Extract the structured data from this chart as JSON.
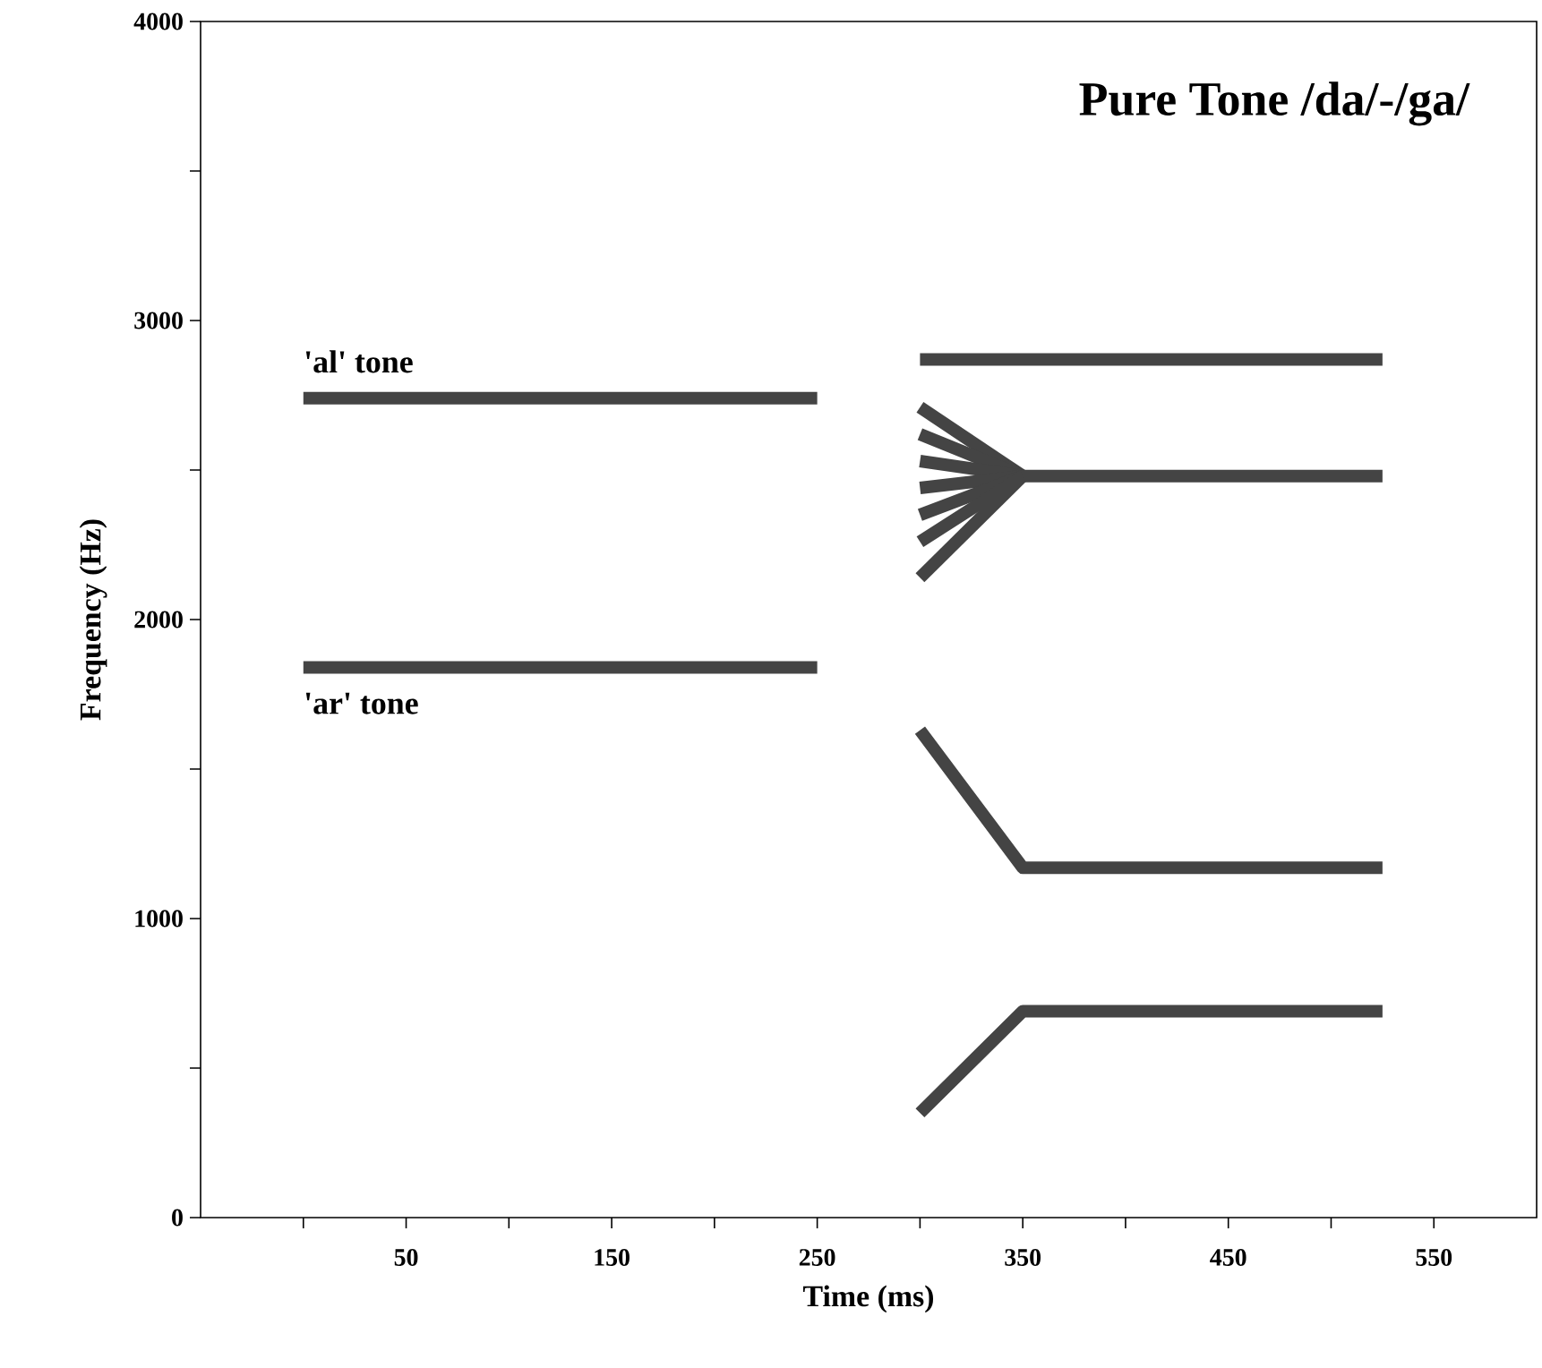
{
  "chart_data": {
    "type": "line",
    "title": "Pure Tone /da/-/ga/",
    "xlabel": "Time  (ms)",
    "ylabel": "Frequency  (Hz)",
    "xlim": [
      -50,
      600
    ],
    "ylim": [
      0,
      4000
    ],
    "xticks": [
      {
        "value": 0,
        "label": null
      },
      50,
      {
        "value": 100,
        "label": null
      },
      150,
      {
        "value": 200,
        "label": null
      },
      250,
      {
        "value": 300,
        "label": null
      },
      350,
      {
        "value": 400,
        "label": null
      },
      450,
      {
        "value": 500,
        "label": null
      },
      550
    ],
    "yticks": [
      0,
      {
        "value": 500,
        "label": null
      },
      1000,
      {
        "value": 1500,
        "label": null
      },
      2000,
      {
        "value": 2500,
        "label": null
      },
      3000,
      {
        "value": 3500,
        "label": null
      },
      4000
    ],
    "grid": false,
    "marker": "none",
    "line_style": "solid",
    "annotations": [
      {
        "text": "'al' tone",
        "x": 0,
        "y": 2740
      },
      {
        "text": "'ar' tone",
        "x": 0,
        "y": 1840
      }
    ],
    "series": [
      {
        "color": "#444444",
        "x": [
          0,
          250
        ],
        "values": [
          2740,
          2740
        ]
      },
      {
        "color": "#444444",
        "x": [
          0,
          250
        ],
        "values": [
          1840,
          1840
        ]
      },
      {
        "color": "#444444",
        "x": [
          300,
          525
        ],
        "values": [
          2870,
          2870
        ]
      },
      {
        "color": "#444444",
        "x": [
          300,
          350
        ],
        "values": [
          2710,
          2480
        ]
      },
      {
        "color": "#444444",
        "x": [
          300,
          350
        ],
        "values": [
          2620,
          2480
        ]
      },
      {
        "color": "#444444",
        "x": [
          300,
          350
        ],
        "values": [
          2530,
          2480
        ]
      },
      {
        "color": "#444444",
        "x": [
          300,
          350,
          525
        ],
        "values": [
          2440,
          2480,
          2480
        ]
      },
      {
        "color": "#444444",
        "x": [
          300,
          350
        ],
        "values": [
          2350,
          2480
        ]
      },
      {
        "color": "#444444",
        "x": [
          300,
          350
        ],
        "values": [
          2260,
          2480
        ]
      },
      {
        "color": "#444444",
        "x": [
          300,
          350
        ],
        "values": [
          2140,
          2480
        ]
      },
      {
        "color": "#444444",
        "x": [
          300,
          350,
          525
        ],
        "values": [
          1630,
          1170,
          1170
        ]
      },
      {
        "color": "#444444",
        "x": [
          300,
          350,
          525
        ],
        "values": [
          350,
          690,
          690
        ]
      }
    ]
  }
}
